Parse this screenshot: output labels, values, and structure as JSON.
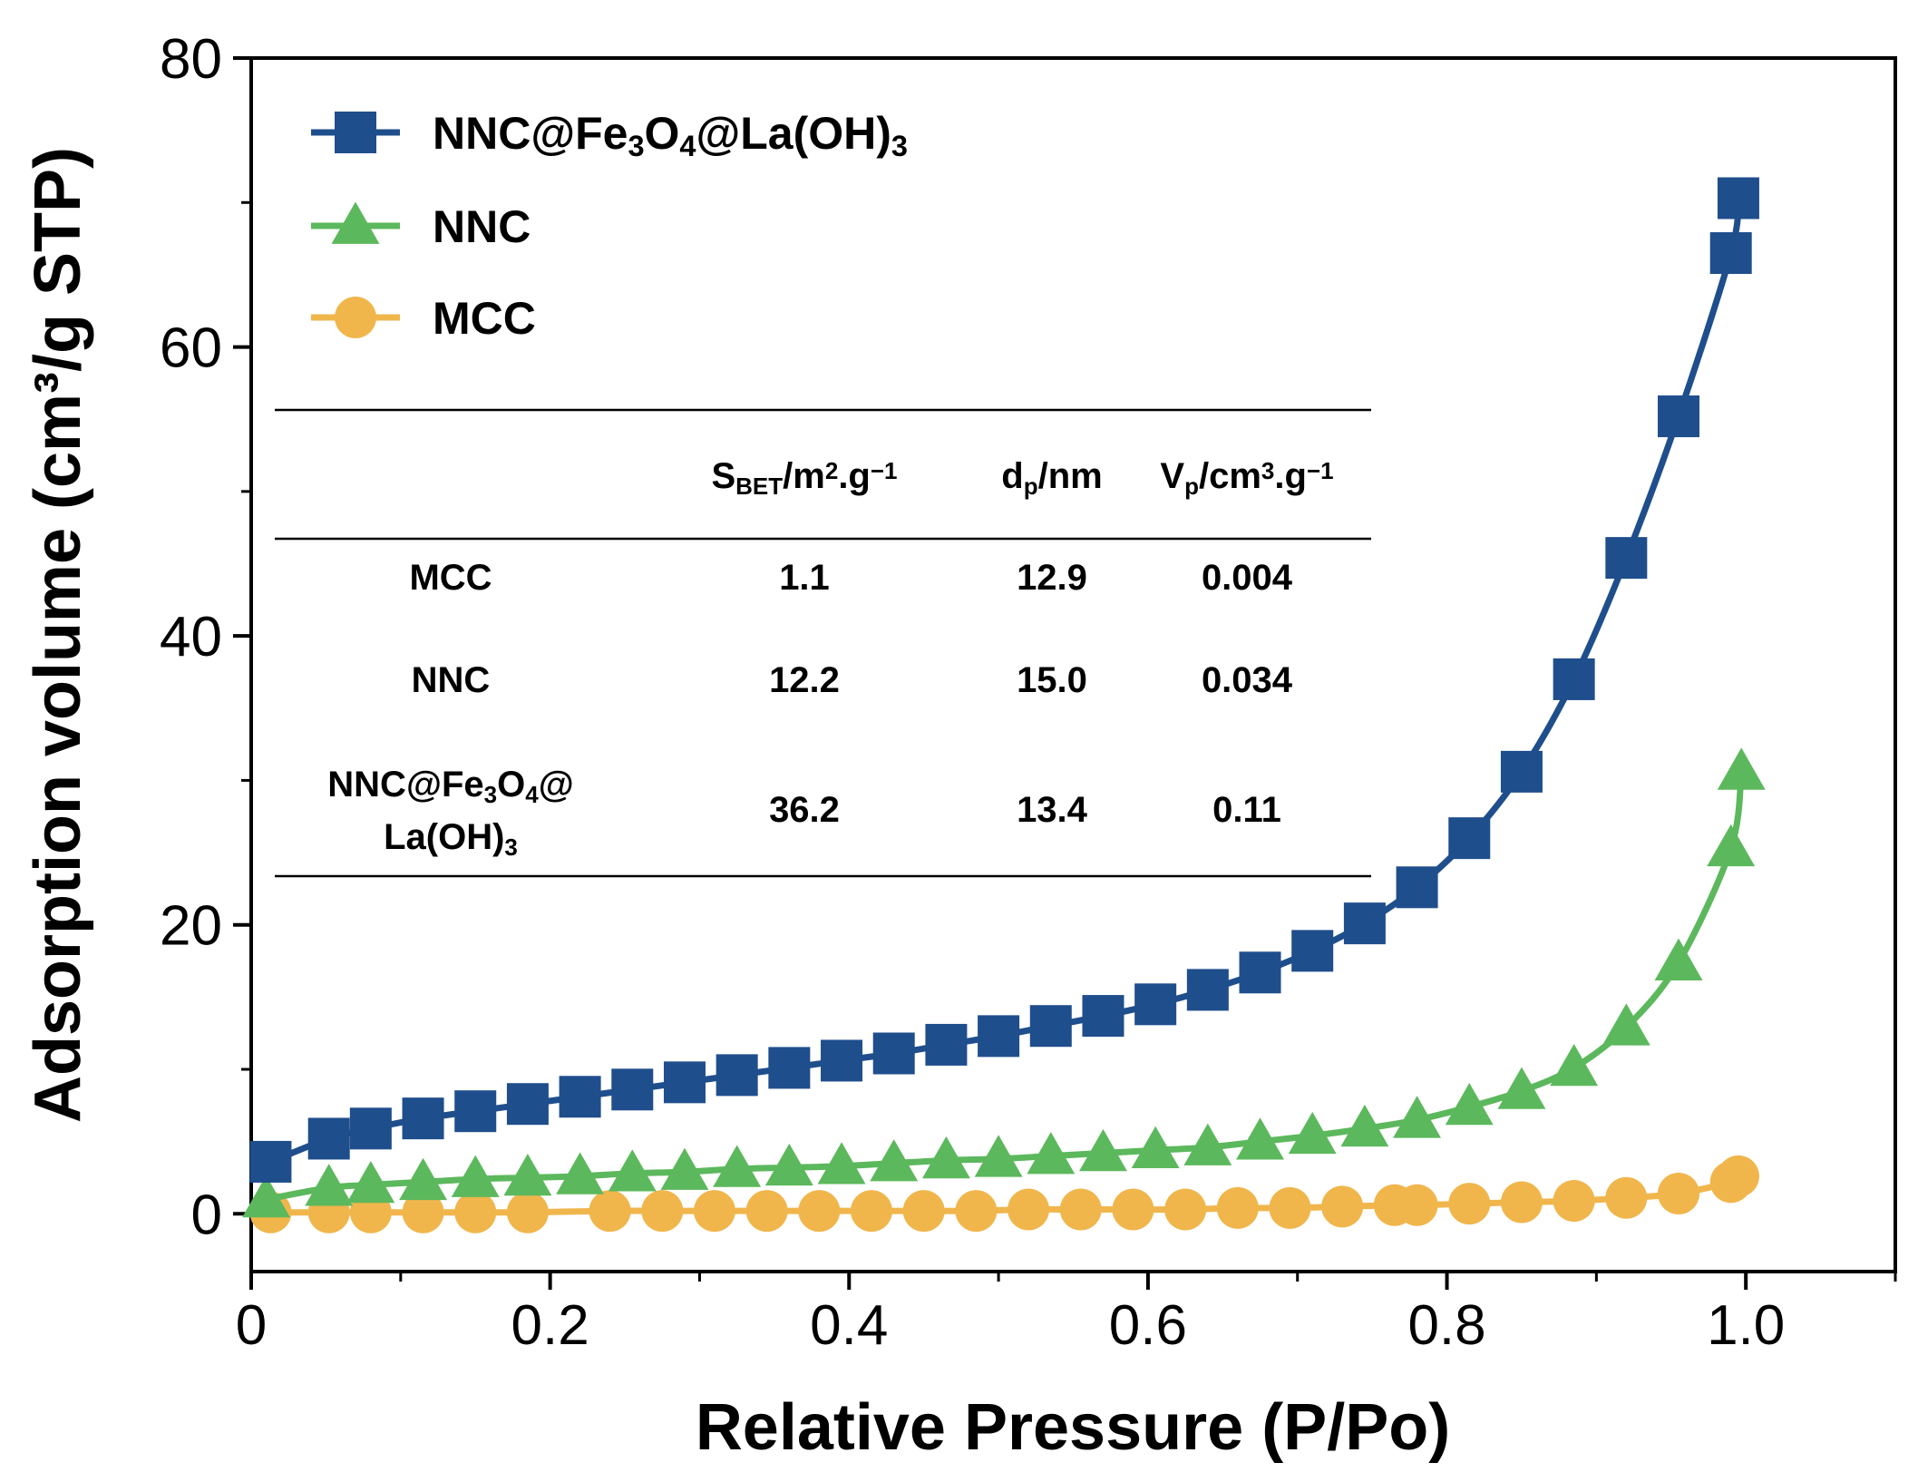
{
  "chart_data": {
    "type": "line",
    "xlabel": "Relative Pressure (P/Po)",
    "ylabel": "Adsorption volume (cm³/g STP)",
    "xlim": [
      0,
      1.1
    ],
    "ylim": [
      -4,
      80
    ],
    "xticks": [
      "0",
      "0.2",
      "0.4",
      "0.6",
      "0.8",
      "1.0"
    ],
    "yticks": [
      "0",
      "20",
      "40",
      "60",
      "80"
    ],
    "grid": false,
    "legend_position": "top-left",
    "series": [
      {
        "name_parts": [
          [
            "NNC@Fe",
            ""
          ],
          [
            "3",
            "sub"
          ],
          [
            "O",
            ""
          ],
          [
            "4",
            "sub"
          ],
          [
            "@La(OH)",
            ""
          ],
          [
            "3",
            "sub"
          ]
        ],
        "color": "#1f4e8c",
        "marker": "square",
        "x": [
          0.013,
          0.052,
          0.08,
          0.115,
          0.15,
          0.185,
          0.22,
          0.255,
          0.29,
          0.325,
          0.36,
          0.395,
          0.43,
          0.465,
          0.5,
          0.535,
          0.57,
          0.605,
          0.64,
          0.675,
          0.71,
          0.745,
          0.78,
          0.815,
          0.85,
          0.885,
          0.92,
          0.955,
          0.99,
          0.995
        ],
        "y": [
          3.6,
          5.2,
          5.9,
          6.6,
          7.1,
          7.6,
          8.1,
          8.6,
          9.1,
          9.6,
          10.1,
          10.6,
          11.1,
          11.7,
          12.3,
          13.0,
          13.7,
          14.5,
          15.5,
          16.7,
          18.2,
          20.1,
          22.6,
          26.0,
          30.6,
          37.0,
          45.4,
          55.2,
          66.5,
          70.3
        ]
      },
      {
        "name": "NNC",
        "color": "#5cb85c",
        "marker": "triangle",
        "x": [
          0.01,
          0.052,
          0.08,
          0.115,
          0.15,
          0.185,
          0.22,
          0.255,
          0.29,
          0.325,
          0.36,
          0.395,
          0.43,
          0.465,
          0.5,
          0.535,
          0.57,
          0.605,
          0.64,
          0.675,
          0.71,
          0.745,
          0.78,
          0.815,
          0.85,
          0.885,
          0.92,
          0.955,
          0.99,
          0.997
        ],
        "y": [
          1.0,
          1.8,
          2.0,
          2.2,
          2.4,
          2.5,
          2.6,
          2.8,
          2.9,
          3.1,
          3.2,
          3.3,
          3.5,
          3.7,
          3.8,
          4.0,
          4.2,
          4.4,
          4.6,
          5.0,
          5.4,
          5.9,
          6.5,
          7.4,
          8.5,
          10.1,
          12.9,
          17.4,
          25.3,
          30.6
        ]
      },
      {
        "name": "MCC",
        "color": "#f0b64c",
        "marker": "circle",
        "x": [
          0.013,
          0.052,
          0.08,
          0.115,
          0.15,
          0.185,
          0.24,
          0.275,
          0.31,
          0.345,
          0.38,
          0.415,
          0.45,
          0.485,
          0.52,
          0.555,
          0.59,
          0.625,
          0.66,
          0.695,
          0.73,
          0.765,
          0.78,
          0.815,
          0.85,
          0.885,
          0.92,
          0.955,
          0.99,
          0.995
        ],
        "y": [
          0.1,
          0.1,
          0.1,
          0.1,
          0.1,
          0.1,
          0.2,
          0.2,
          0.2,
          0.2,
          0.2,
          0.2,
          0.2,
          0.2,
          0.3,
          0.3,
          0.3,
          0.3,
          0.4,
          0.4,
          0.5,
          0.6,
          0.6,
          0.7,
          0.8,
          0.9,
          1.1,
          1.4,
          2.2,
          2.6
        ]
      }
    ],
    "table": {
      "headers": [
        "",
        [
          [
            "S",
            ""
          ],
          [
            "BET",
            "sub"
          ],
          [
            "/m",
            ""
          ],
          [
            "2",
            "sup"
          ],
          [
            ".g",
            ""
          ],
          [
            "−1",
            "sup"
          ]
        ],
        [
          [
            "d",
            ""
          ],
          [
            "p",
            "sub"
          ],
          [
            "/nm",
            ""
          ]
        ],
        [
          [
            "V",
            ""
          ],
          [
            "p",
            "sub"
          ],
          [
            "/cm",
            ""
          ],
          [
            "3",
            "sup"
          ],
          [
            ".g",
            ""
          ],
          [
            "−1",
            "sup"
          ]
        ]
      ],
      "rows": [
        {
          "sample": [
            [
              "MCC",
              ""
            ]
          ],
          "s_bet": "1.1",
          "dp": "12.9",
          "vp": "0.004"
        },
        {
          "sample": [
            [
              "NNC",
              ""
            ]
          ],
          "s_bet": "12.2",
          "dp": "15.0",
          "vp": "0.034"
        },
        {
          "sample": [
            [
              "NNC@Fe",
              ""
            ],
            [
              "3",
              "sub"
            ],
            [
              "O",
              ""
            ],
            [
              "4",
              "sub"
            ],
            [
              "@",
              ""
            ]
          ],
          "sample_line2": [
            [
              "La(OH)",
              ""
            ],
            [
              "3",
              "sub"
            ]
          ],
          "s_bet": "36.2",
          "dp": "13.4",
          "vp": "0.11"
        }
      ]
    }
  }
}
